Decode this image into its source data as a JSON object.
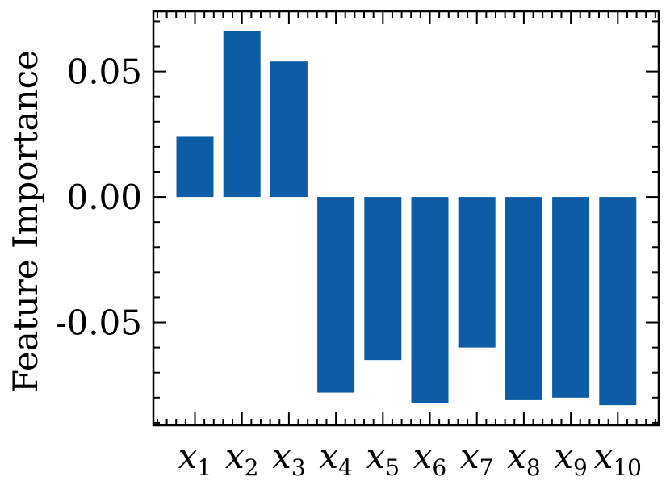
{
  "chart_data": {
    "type": "bar",
    "title": "",
    "xlabel": "",
    "ylabel": "Feature Importance",
    "categories": [
      {
        "base": "x",
        "sub": "1"
      },
      {
        "base": "x",
        "sub": "2"
      },
      {
        "base": "x",
        "sub": "3"
      },
      {
        "base": "x",
        "sub": "4"
      },
      {
        "base": "x",
        "sub": "5"
      },
      {
        "base": "x",
        "sub": "6"
      },
      {
        "base": "x",
        "sub": "7"
      },
      {
        "base": "x",
        "sub": "8"
      },
      {
        "base": "x",
        "sub": "9"
      },
      {
        "base": "x",
        "sub": "10"
      }
    ],
    "values": [
      0.024,
      0.066,
      0.054,
      -0.078,
      -0.065,
      -0.082,
      -0.06,
      -0.081,
      -0.08,
      -0.083
    ],
    "ylim": [
      -0.091,
      0.074
    ],
    "yticks": [
      {
        "value": 0.05,
        "label": "0.05"
      },
      {
        "value": 0.0,
        "label": "0.00"
      },
      {
        "value": -0.05,
        "label": "-0.05"
      }
    ],
    "grid": false,
    "bar_color": "#0c5da5"
  }
}
